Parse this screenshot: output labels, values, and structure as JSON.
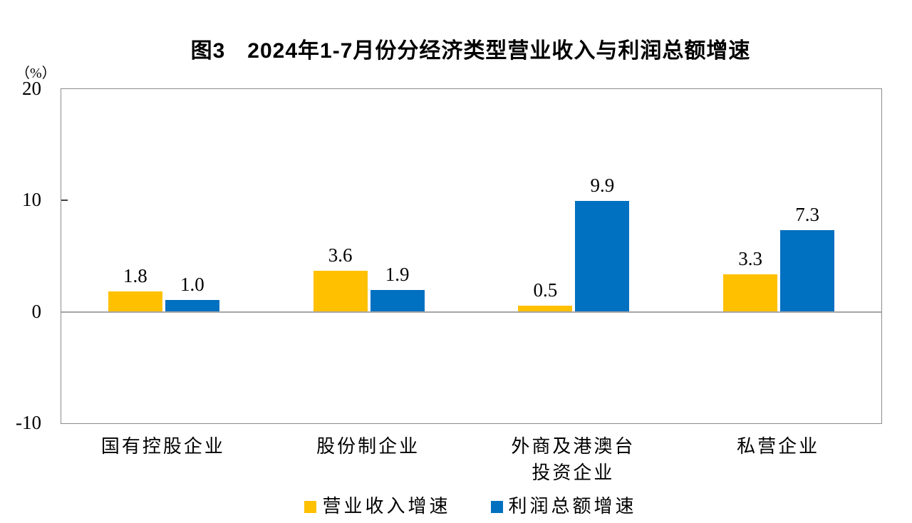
{
  "title": "图3　2024年1-7月份分经济类型营业收入与利润总额增速",
  "chart_data": {
    "type": "bar",
    "title": "图3　2024年1-7月份分经济类型营业收入与利润总额增速",
    "unit_label": "（%）",
    "categories": [
      "国有控股企业",
      "股份制企业",
      "外商及港澳台\n投资企业",
      "私营企业"
    ],
    "series": [
      {
        "name": "营业收入增速",
        "color": "#FFC000",
        "values": [
          1.8,
          3.6,
          0.5,
          3.3
        ]
      },
      {
        "name": "利润总额增速",
        "color": "#0070C0",
        "values": [
          1.0,
          1.9,
          9.9,
          7.3
        ]
      }
    ],
    "ylim": [
      -10,
      20
    ],
    "yticks": [
      20,
      10,
      0,
      -10
    ],
    "grid": false,
    "zero_line": true,
    "legend_position": "bottom",
    "axis_color": "#8c8c8c",
    "zero_line_color": "#a6a6a6",
    "tick_color": "#404040",
    "text_color": "#000000"
  }
}
